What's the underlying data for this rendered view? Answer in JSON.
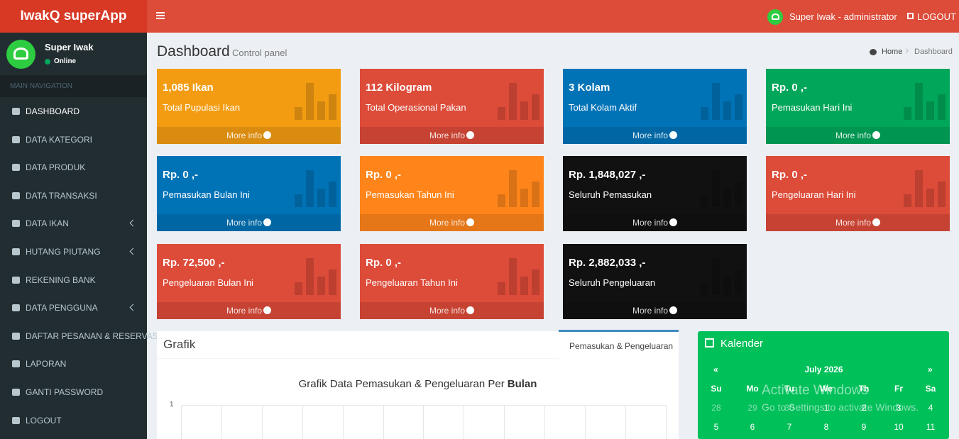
{
  "header": {
    "brand": "IwakQ superApp",
    "user": "Super Iwak - administrator",
    "logout": "LOGOUT"
  },
  "sidebar": {
    "user_name": "Super Iwak",
    "status": "Online",
    "section": "MAIN NAVIGATION",
    "items": [
      {
        "label": "DASHBOARD",
        "submenu": false
      },
      {
        "label": "DATA KATEGORI",
        "submenu": false
      },
      {
        "label": "DATA PRODUK",
        "submenu": false
      },
      {
        "label": "DATA TRANSAKSI",
        "submenu": false
      },
      {
        "label": "DATA IKAN",
        "submenu": true
      },
      {
        "label": "HUTANG PIUTANG",
        "submenu": true
      },
      {
        "label": "REKENING BANK",
        "submenu": false
      },
      {
        "label": "DATA PENGGUNA",
        "submenu": true
      },
      {
        "label": "DAFTAR PESANAN & RESERVASI",
        "submenu": false
      },
      {
        "label": "LAPORAN",
        "submenu": false
      },
      {
        "label": "GANTI PASSWORD",
        "submenu": false
      },
      {
        "label": "LOGOUT",
        "submenu": false
      }
    ]
  },
  "content": {
    "title": "Dashboard",
    "subtitle": "Control panel",
    "breadcrumb": [
      "Home",
      "Dashboard"
    ],
    "boxes": [
      {
        "value": "1,085 Ikan",
        "label": "Total Pupulasi Ikan",
        "link": "More info",
        "color": "#f39c12"
      },
      {
        "value": "112 Kilogram",
        "label": "Total Operasional Pakan",
        "link": "More info",
        "color": "#dd4b39"
      },
      {
        "value": "3 Kolam",
        "label": "Total Kolam Aktif",
        "link": "More info",
        "color": "#0073b7"
      },
      {
        "value": "Rp. 0 ,-",
        "label": "Pemasukan Hari Ini",
        "link": "More info",
        "color": "#00a65a"
      },
      {
        "value": "Rp. 0 ,-",
        "label": "Pemasukan Bulan Ini",
        "link": "More info",
        "color": "#0073b7"
      },
      {
        "value": "Rp. 0 ,-",
        "label": "Pemasukan Tahun Ini",
        "link": "More info",
        "color": "#ff851b"
      },
      {
        "value": "Rp. 1,848,027 ,-",
        "label": "Seluruh Pemasukan",
        "link": "More info",
        "color": "#111111"
      },
      {
        "value": "Rp. 0 ,-",
        "label": "Pengeluaran Hari Ini",
        "link": "More info",
        "color": "#dd4b39"
      },
      {
        "value": "Rp. 72,500 ,-",
        "label": "Pengeluaran Bulan Ini",
        "link": "More info",
        "color": "#dd4b39"
      },
      {
        "value": "Rp. 0 ,-",
        "label": "Pengeluaran Tahun Ini",
        "link": "More info",
        "color": "#dd4b39"
      },
      {
        "value": "Rp. 2,882,033 ,-",
        "label": "Seluruh Pengeluaran",
        "link": "More info",
        "color": "#111111"
      }
    ]
  },
  "grafik": {
    "title": "Grafik",
    "tab": "Pemasukan & Pengeluaran",
    "chart_title": "Grafik Data Pemasukan & Pengeluaran Per",
    "chart_title_bold": "Bulan",
    "y_tick": "1"
  },
  "calendar": {
    "title": "Kalender",
    "prev": "«",
    "month": "July 2026",
    "next": "»",
    "weekdays": [
      "Su",
      "Mo",
      "Tu",
      "We",
      "Th",
      "Fr",
      "Sa"
    ],
    "weeks": [
      [
        "28",
        "29",
        "30",
        "1",
        "2",
        "3",
        "4"
      ],
      [
        "5",
        "6",
        "7",
        "8",
        "9",
        "10",
        "11"
      ]
    ]
  },
  "watermark": {
    "title": "Activate Windows",
    "text": "Go to Settings to activate Windows."
  }
}
